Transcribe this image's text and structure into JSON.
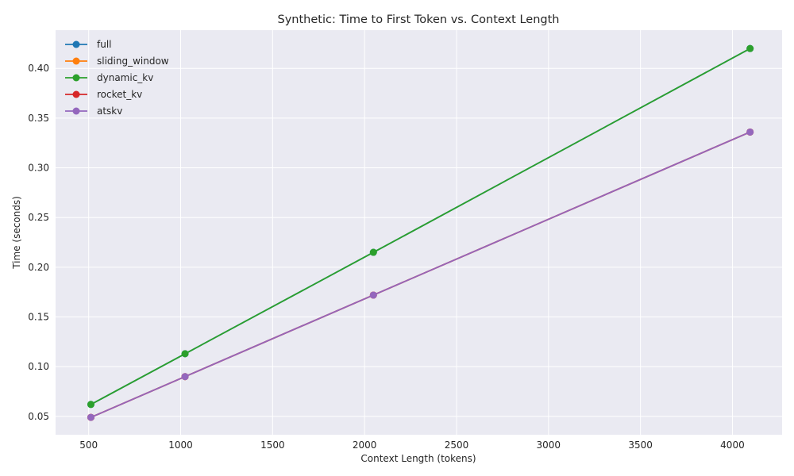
{
  "chart_data": {
    "type": "line",
    "title": "Synthetic: Time to First Token vs. Context Length",
    "xlabel": "Context Length (tokens)",
    "ylabel": "Time (seconds)",
    "xlim": [
      320,
      4270
    ],
    "ylim": [
      0.0315,
      0.4385
    ],
    "x_ticks": [
      500,
      1000,
      1500,
      2000,
      2500,
      3000,
      3500,
      4000
    ],
    "y_ticks": [
      0.05,
      0.1,
      0.15,
      0.2,
      0.25,
      0.3,
      0.35,
      0.4
    ],
    "y_tick_labels": [
      "0.05",
      "0.10",
      "0.15",
      "0.20",
      "0.25",
      "0.30",
      "0.35",
      "0.40"
    ],
    "grid": true,
    "legend_position": "upper-left",
    "x": [
      512,
      1024,
      2048,
      4096
    ],
    "series": [
      {
        "name": "full",
        "color": "#1f77b4",
        "values": [
          0.062,
          0.113,
          0.215,
          0.42
        ]
      },
      {
        "name": "sliding_window",
        "color": "#ff7f0e",
        "values": [
          0.049,
          0.09,
          0.172,
          0.336
        ]
      },
      {
        "name": "dynamic_kv",
        "color": "#2ca02c",
        "values": [
          0.062,
          0.113,
          0.215,
          0.42
        ]
      },
      {
        "name": "rocket_kv",
        "color": "#d62728",
        "values": [
          0.049,
          0.09,
          0.172,
          0.336
        ]
      },
      {
        "name": "atskv",
        "color": "#9467bd",
        "values": [
          0.049,
          0.09,
          0.172,
          0.336
        ]
      }
    ]
  }
}
